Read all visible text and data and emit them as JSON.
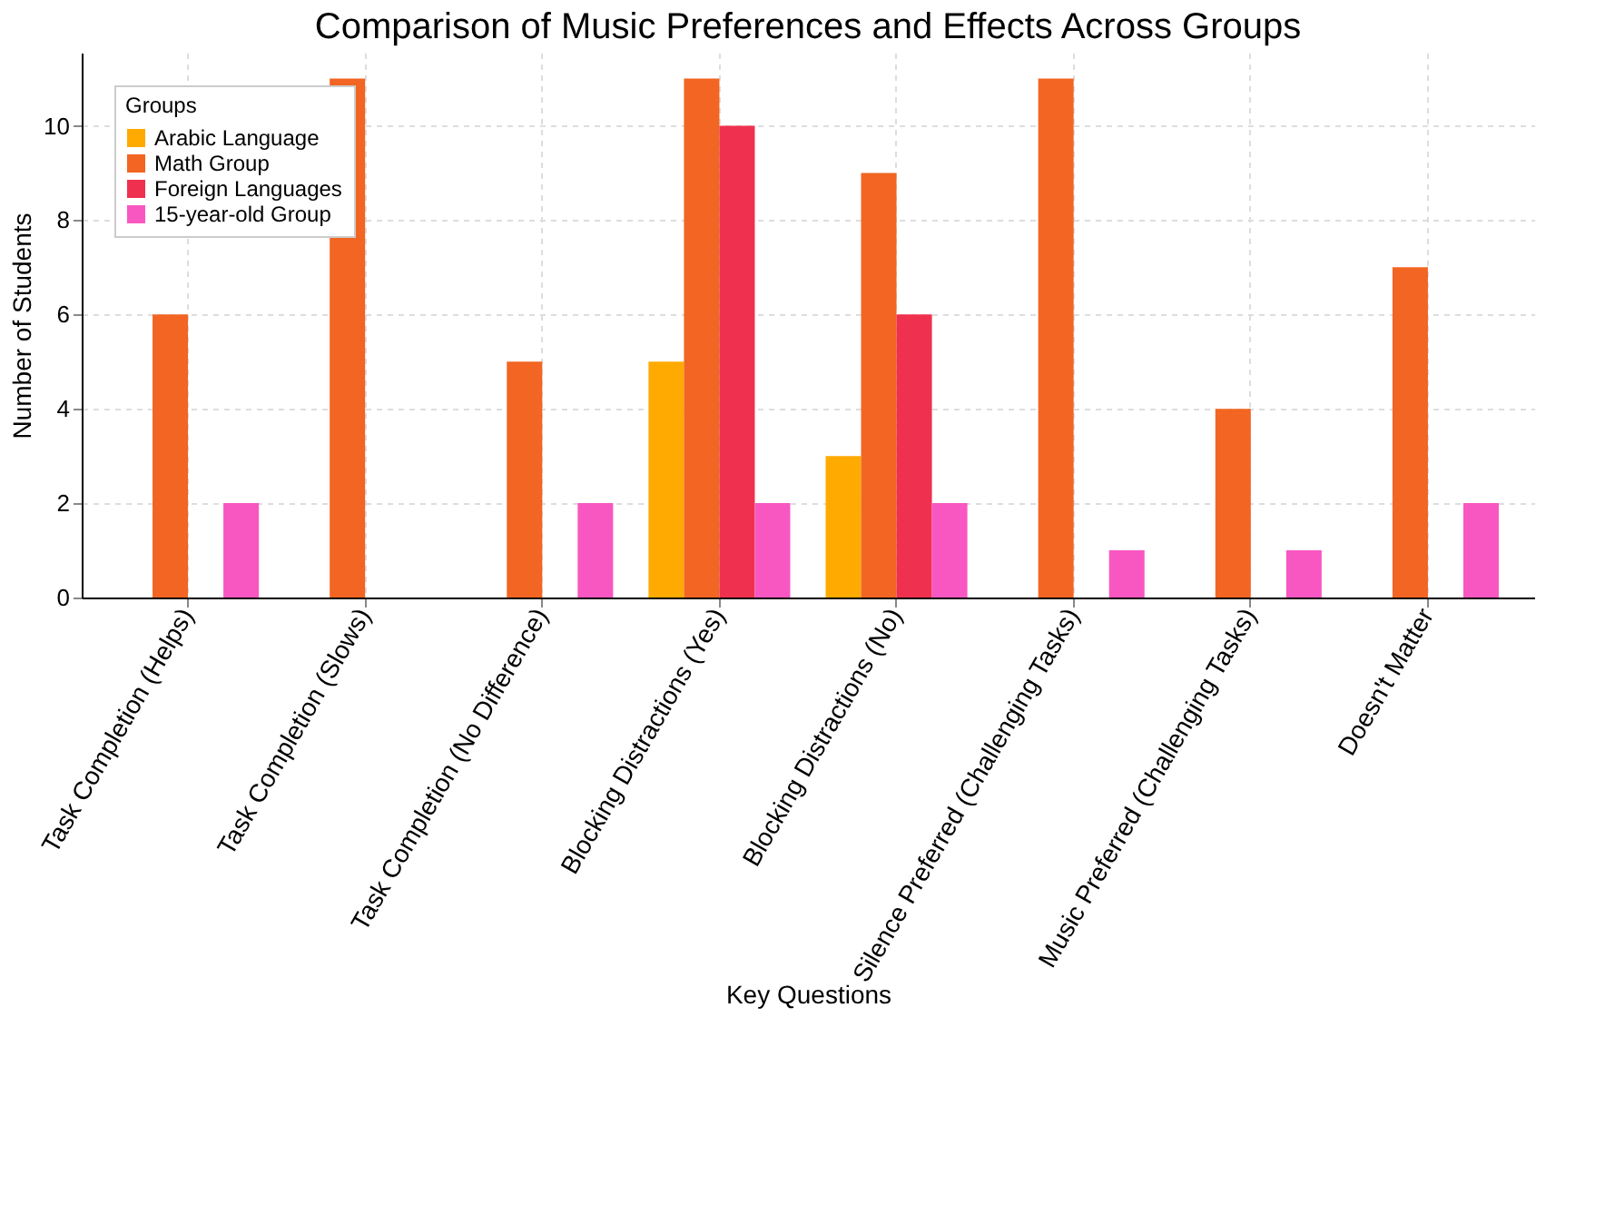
{
  "chart_data": {
    "type": "bar",
    "title": "Comparison of Music Preferences and Effects Across Groups",
    "xlabel": "Key Questions",
    "ylabel": "Number of Students",
    "legend_title": "Groups",
    "categories": [
      "Task Completion (Helps)",
      "Task Completion (Slows)",
      "Task Completion (No Difference)",
      "Blocking Distractions (Yes)",
      "Blocking Distractions (No)",
      "Silence Preferred (Challenging Tasks)",
      "Music Preferred (Challenging Tasks)",
      "Doesn't Matter"
    ],
    "series": [
      {
        "name": "Arabic Language",
        "color": "#ffaa00",
        "values": [
          0,
          0,
          0,
          5,
          3,
          0,
          0,
          0
        ]
      },
      {
        "name": "Math Group",
        "color": "#f26522",
        "values": [
          6,
          11,
          5,
          11,
          9,
          11,
          4,
          7
        ]
      },
      {
        "name": "Foreign Languages",
        "color": "#f0304f",
        "values": [
          0,
          0,
          0,
          10,
          6,
          0,
          0,
          0
        ]
      },
      {
        "name": "15-year-old Group",
        "color": "#f857c1",
        "values": [
          2,
          0,
          2,
          2,
          2,
          1,
          1,
          2
        ]
      }
    ],
    "ylim": [
      0,
      11.55
    ],
    "yticks": [
      0,
      2,
      4,
      6,
      8,
      10
    ],
    "grid": true,
    "legend": "top left"
  }
}
